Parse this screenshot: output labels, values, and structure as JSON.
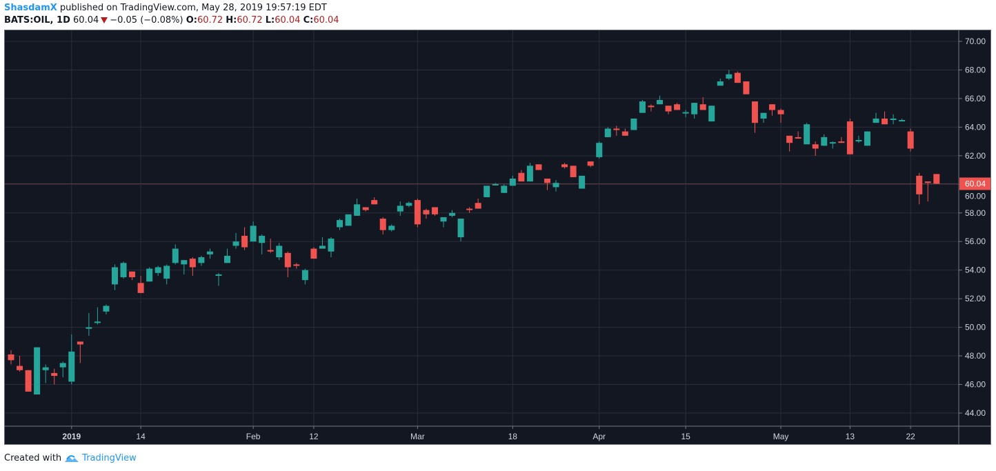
{
  "header": {
    "author": "ShasdamX",
    "published_text": "published on TradingView.com, May 28, 2019 19:57:19 EDT",
    "symbol": "BATS:OIL, 1D",
    "last": "60.04",
    "change": "−0.05 (−0.08%)",
    "o_label": "O:",
    "o": "60.72",
    "h_label": "H:",
    "h": "60.72",
    "l_label": "L:",
    "l": "60.04",
    "c_label": "C:",
    "c": "60.04",
    "direction_icon": "triangle-down-icon"
  },
  "footer": {
    "created_with": "Created with",
    "brand": "TradingView",
    "logo_icon": "tradingview-logo-icon"
  },
  "colors": {
    "up": "#26a69a",
    "down": "#ef5350",
    "background": "#131722",
    "grid": "#2a2e39",
    "axis_text": "#d1d4dc",
    "header_red": "#b71c1c",
    "brand": "#2196f3"
  },
  "chart_data": {
    "type": "candlestick",
    "title": "BATS:OIL, 1D",
    "ylim": [
      43,
      70.7
    ],
    "y_ticks": [
      "70.00",
      "68.00",
      "66.00",
      "64.00",
      "62.00",
      "60.00",
      "58.00",
      "56.00",
      "54.00",
      "52.00",
      "50.00",
      "48.00",
      "46.00",
      "44.00"
    ],
    "last_price": 60.04,
    "last_price_label": "60.04",
    "x_ticks": [
      {
        "bar": 8,
        "label": "2019",
        "bold": true
      },
      {
        "bar": 16,
        "label": "14"
      },
      {
        "bar": 29,
        "label": "Feb"
      },
      {
        "bar": 36,
        "label": "12"
      },
      {
        "bar": 48,
        "label": "Mar"
      },
      {
        "bar": 59,
        "label": "18"
      },
      {
        "bar": 69,
        "label": "Apr"
      },
      {
        "bar": 79,
        "label": "15"
      },
      {
        "bar": 90,
        "label": "May"
      },
      {
        "bar": 98,
        "label": "13"
      },
      {
        "bar": 105,
        "label": "22"
      }
    ],
    "ohlc_fields": [
      "open",
      "high",
      "low",
      "close"
    ],
    "ohlc": [
      [
        48.1,
        48.4,
        47.4,
        47.7
      ],
      [
        47.3,
        48.0,
        46.9,
        47.0
      ],
      [
        47.0,
        47.0,
        45.5,
        45.5
      ],
      [
        45.3,
        48.6,
        45.3,
        48.6
      ],
      [
        47.0,
        47.4,
        46.1,
        47.2
      ],
      [
        46.8,
        47.1,
        46.0,
        46.6
      ],
      [
        47.2,
        47.6,
        46.5,
        47.5
      ],
      [
        46.2,
        49.5,
        46.0,
        48.3
      ],
      [
        49.0,
        49.0,
        47.5,
        48.8
      ],
      [
        49.9,
        51.0,
        49.4,
        50.0
      ],
      [
        50.3,
        51.4,
        50.2,
        50.4
      ],
      [
        51.1,
        51.6,
        50.9,
        51.5
      ],
      [
        53.0,
        54.4,
        52.6,
        54.2
      ],
      [
        53.5,
        54.6,
        53.4,
        54.5
      ],
      [
        53.9,
        53.9,
        53.3,
        53.5
      ],
      [
        53.1,
        53.6,
        52.4,
        52.4
      ],
      [
        53.2,
        54.2,
        53.2,
        54.1
      ],
      [
        53.8,
        54.3,
        53.6,
        54.2
      ],
      [
        53.4,
        54.4,
        53.0,
        54.3
      ],
      [
        54.5,
        55.8,
        54.4,
        55.5
      ],
      [
        54.4,
        54.7,
        53.7,
        54.7
      ],
      [
        54.8,
        54.9,
        53.6,
        54.2
      ],
      [
        54.5,
        55.0,
        54.3,
        54.9
      ],
      [
        55.1,
        55.5,
        54.8,
        55.3
      ],
      [
        53.6,
        53.8,
        52.9,
        53.7
      ],
      [
        54.5,
        55.5,
        54.5,
        55.0
      ],
      [
        55.7,
        56.6,
        55.5,
        56.0
      ],
      [
        56.4,
        57.0,
        55.4,
        55.6
      ],
      [
        56.0,
        57.4,
        56.0,
        57.1
      ],
      [
        55.9,
        56.5,
        55.1,
        56.4
      ],
      [
        55.4,
        56.2,
        55.2,
        55.3
      ],
      [
        54.9,
        55.9,
        54.7,
        55.7
      ],
      [
        55.2,
        55.3,
        53.5,
        54.2
      ],
      [
        54.4,
        54.5,
        54.1,
        54.3
      ],
      [
        53.3,
        54.1,
        53.0,
        54.0
      ],
      [
        55.5,
        55.6,
        54.8,
        54.8
      ],
      [
        55.5,
        56.3,
        55.5,
        55.7
      ],
      [
        55.3,
        56.3,
        54.9,
        56.2
      ],
      [
        57.0,
        57.6,
        56.8,
        57.5
      ],
      [
        57.1,
        57.9,
        57.1,
        57.9
      ],
      [
        57.8,
        59.0,
        57.8,
        58.6
      ],
      [
        58.4,
        58.4,
        58.1,
        58.2
      ],
      [
        58.9,
        59.1,
        58.6,
        58.6
      ],
      [
        57.6,
        57.7,
        56.5,
        56.8
      ],
      [
        56.8,
        57.2,
        56.7,
        57.1
      ],
      [
        58.1,
        58.8,
        57.8,
        58.5
      ],
      [
        58.5,
        58.8,
        58.4,
        58.7
      ],
      [
        58.9,
        59.0,
        57.0,
        57.2
      ],
      [
        58.2,
        58.3,
        57.6,
        57.9
      ],
      [
        58.4,
        58.4,
        57.8,
        57.9
      ],
      [
        57.4,
        57.7,
        57.0,
        57.7
      ],
      [
        57.8,
        58.2,
        57.7,
        58.0
      ],
      [
        56.3,
        57.6,
        56.0,
        57.6
      ],
      [
        58.3,
        58.4,
        58.0,
        58.2
      ],
      [
        58.7,
        59.0,
        58.3,
        58.3
      ],
      [
        59.1,
        59.9,
        59.1,
        59.9
      ],
      [
        60.0,
        60.1,
        59.95,
        60.02
      ],
      [
        59.4,
        60.0,
        59.4,
        59.9
      ],
      [
        59.9,
        60.6,
        59.9,
        60.4
      ],
      [
        60.8,
        61.0,
        60.2,
        60.2
      ],
      [
        60.2,
        61.5,
        60.2,
        61.3
      ],
      [
        61.4,
        61.4,
        61.0,
        61.0
      ],
      [
        60.4,
        60.4,
        59.6,
        60.1
      ],
      [
        59.8,
        60.3,
        59.5,
        60.1
      ],
      [
        61.4,
        61.5,
        61.1,
        61.2
      ],
      [
        61.3,
        61.3,
        60.5,
        60.5
      ],
      [
        59.7,
        60.6,
        59.7,
        60.6
      ],
      [
        61.6,
        61.6,
        61.2,
        61.3
      ],
      [
        61.9,
        63.0,
        61.8,
        62.9
      ],
      [
        63.3,
        64.0,
        63.3,
        63.9
      ],
      [
        63.9,
        64.1,
        63.4,
        63.8
      ],
      [
        63.7,
        63.9,
        63.4,
        63.4
      ],
      [
        63.8,
        64.6,
        63.8,
        64.6
      ],
      [
        65.0,
        65.9,
        65.0,
        65.8
      ],
      [
        65.5,
        65.6,
        65.1,
        65.4
      ],
      [
        65.6,
        66.2,
        65.6,
        65.9
      ],
      [
        65.5,
        65.5,
        64.9,
        65.1
      ],
      [
        65.6,
        65.7,
        65.2,
        65.2
      ],
      [
        65.0,
        65.2,
        64.7,
        65.05
      ],
      [
        64.9,
        65.7,
        64.6,
        65.7
      ],
      [
        65.6,
        66.1,
        65.2,
        65.2
      ],
      [
        64.4,
        65.5,
        64.4,
        65.5
      ],
      [
        66.9,
        67.4,
        66.9,
        67.2
      ],
      [
        67.4,
        68.0,
        67.3,
        67.7
      ],
      [
        67.8,
        67.9,
        67.1,
        67.1
      ],
      [
        67.2,
        67.2,
        66.3,
        66.3
      ],
      [
        65.8,
        65.8,
        63.6,
        64.3
      ],
      [
        64.6,
        65.0,
        64.3,
        65.0
      ],
      [
        65.6,
        65.6,
        64.8,
        65.2
      ],
      [
        65.2,
        65.3,
        64.3,
        64.9
      ],
      [
        63.4,
        63.4,
        62.3,
        62.9
      ],
      [
        63.3,
        63.7,
        63.2,
        63.2
      ],
      [
        62.8,
        64.3,
        62.8,
        64.2
      ],
      [
        62.8,
        63.0,
        62.0,
        62.5
      ],
      [
        62.7,
        63.5,
        62.7,
        63.3
      ],
      [
        62.9,
        63.0,
        62.5,
        62.95
      ],
      [
        63.0,
        63.3,
        62.9,
        62.9
      ],
      [
        64.4,
        64.6,
        62.1,
        62.1
      ],
      [
        63.0,
        63.4,
        62.9,
        63.1
      ],
      [
        62.7,
        63.7,
        62.7,
        63.7
      ],
      [
        64.3,
        65.0,
        64.3,
        64.6
      ],
      [
        64.6,
        65.1,
        64.2,
        64.2
      ],
      [
        64.5,
        64.9,
        64.2,
        64.6
      ],
      [
        64.4,
        64.6,
        64.4,
        64.5
      ],
      [
        63.7,
        63.9,
        62.3,
        62.5
      ],
      [
        60.6,
        60.8,
        58.6,
        59.3
      ],
      [
        60.2,
        60.2,
        58.8,
        60.1
      ],
      [
        60.72,
        60.72,
        60.04,
        60.04
      ]
    ]
  }
}
